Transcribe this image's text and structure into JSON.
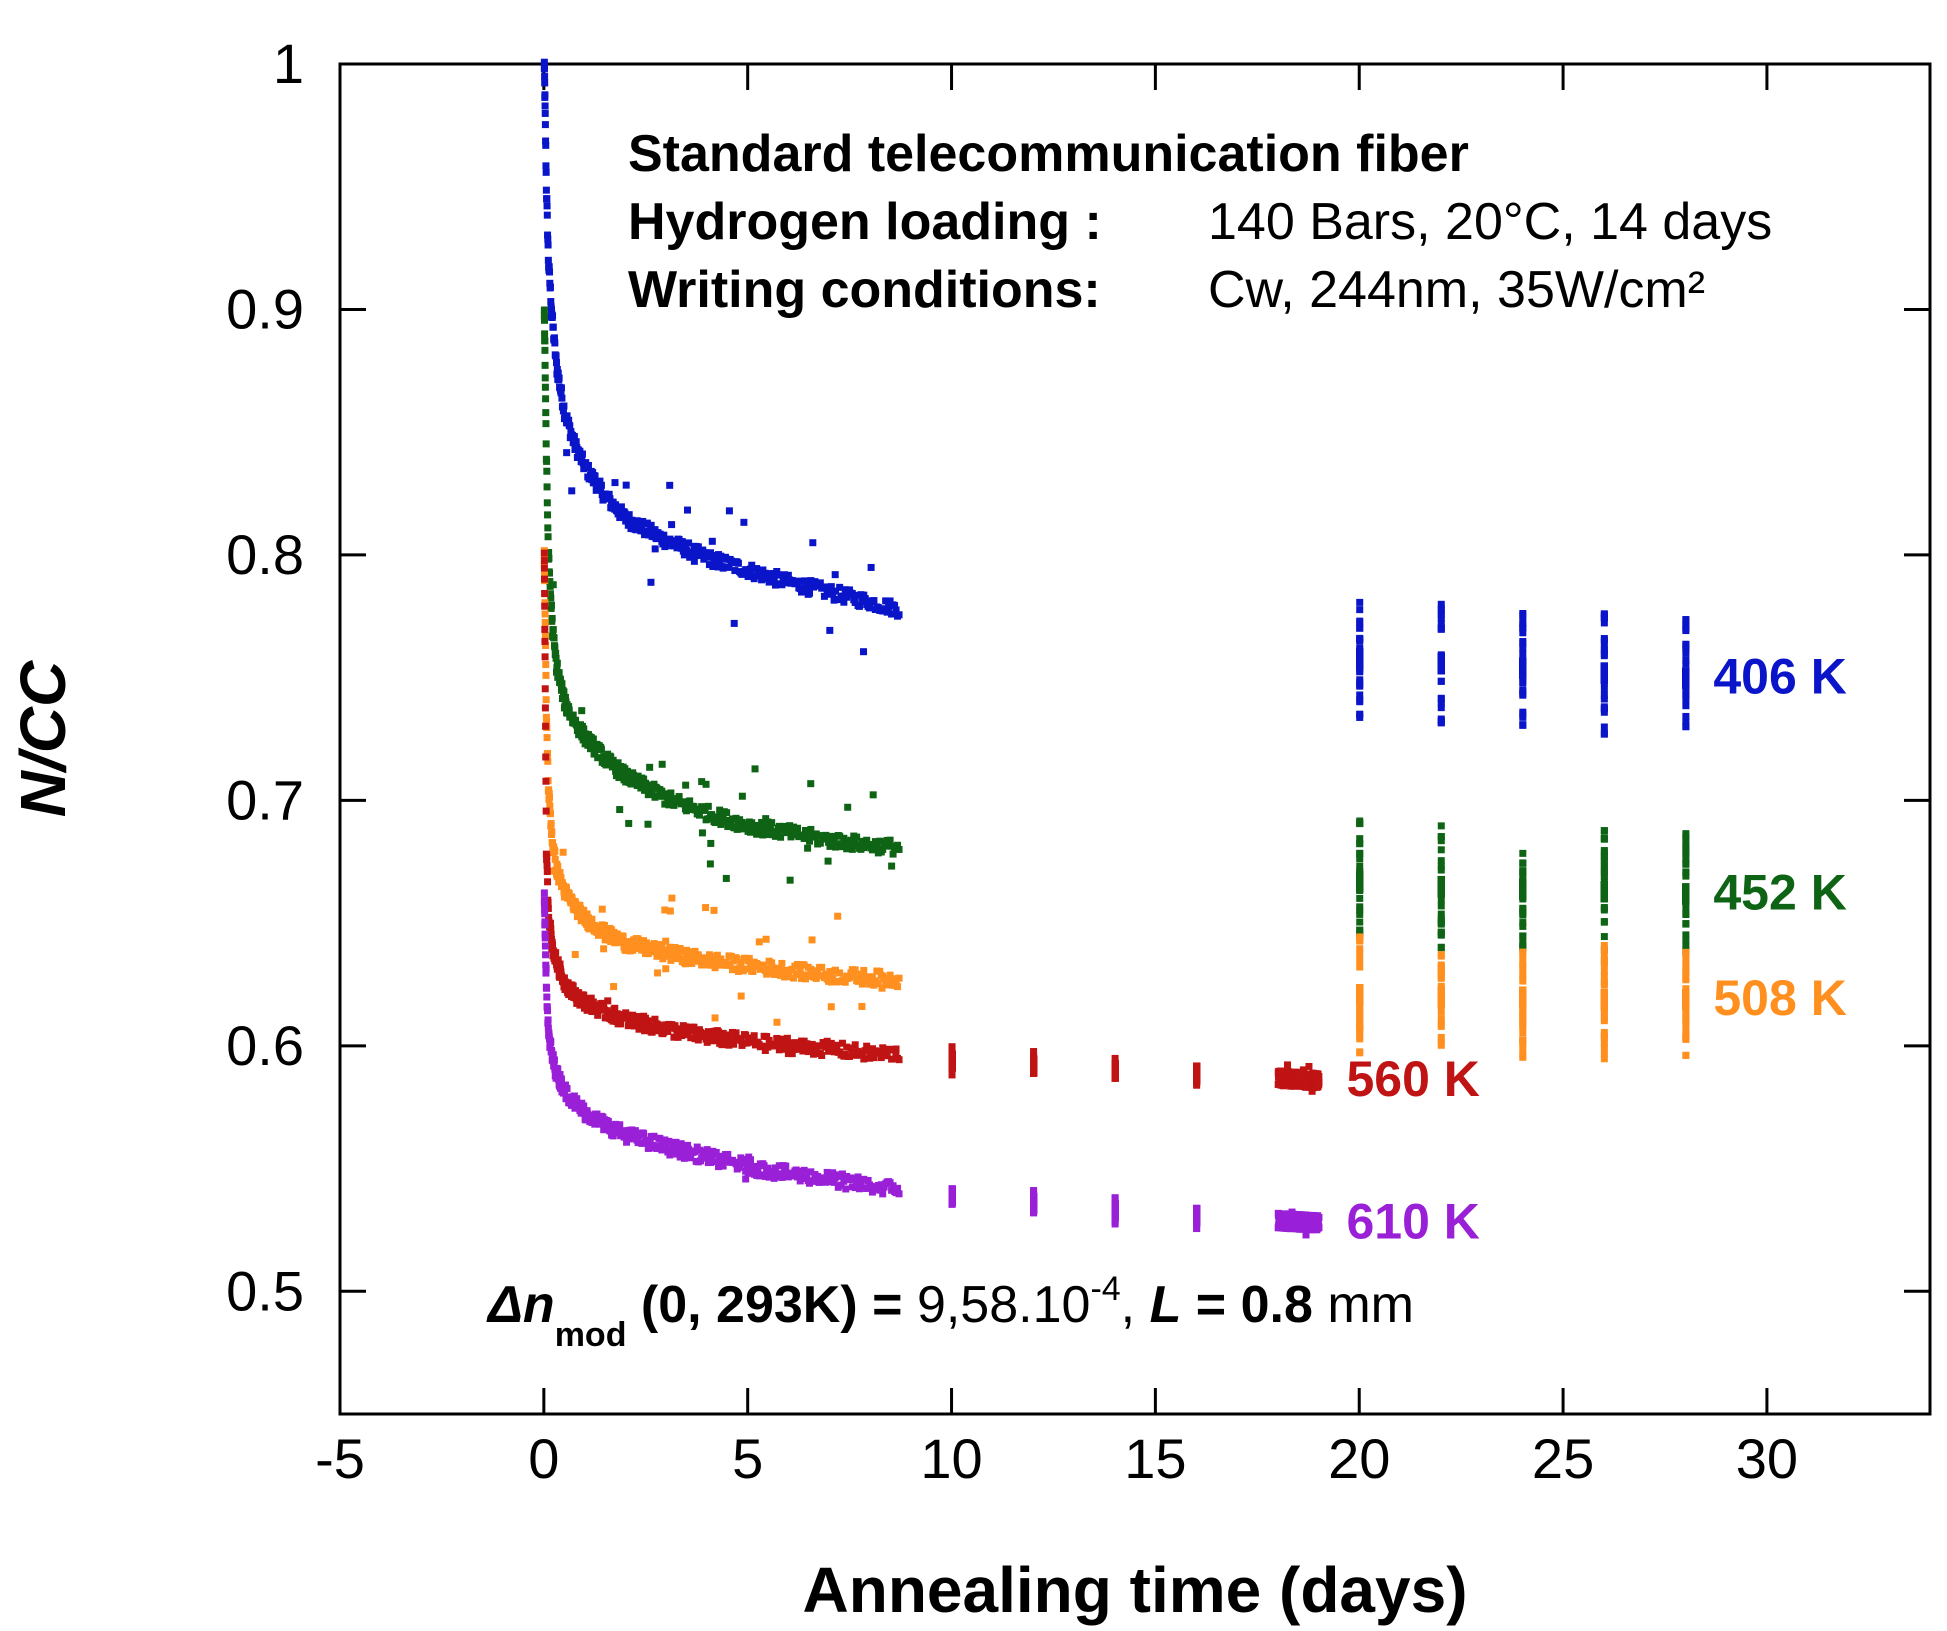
{
  "chart_data": {
    "type": "scatter",
    "title": "",
    "xlabel": "Annealing time (days)",
    "ylabel": "N/CC",
    "xlim": [
      -5,
      34
    ],
    "ylim": [
      0.45,
      1.0
    ],
    "xticks": [
      -5,
      0,
      5,
      10,
      15,
      20,
      25,
      30
    ],
    "xtick_labels": [
      "-5",
      "0",
      "5",
      "10",
      "15",
      "20",
      "25",
      "30"
    ],
    "yticks": [
      0.5,
      0.6,
      0.7,
      0.8,
      0.9,
      1.0
    ],
    "ytick_labels": [
      "0.5",
      "0.6",
      "0.7",
      "0.8",
      "0.9",
      "1"
    ],
    "grid": false,
    "series": [
      {
        "name": "406 K",
        "label": "406 K",
        "color": "#0a14c8",
        "x": [
          0,
          0.05,
          0.1,
          0.2,
          0.3,
          0.5,
          0.75,
          1,
          1.5,
          2,
          3,
          4,
          5,
          6,
          7,
          8,
          8.7,
          20,
          22,
          24,
          26,
          28
        ],
        "y": [
          1.0,
          0.95,
          0.92,
          0.895,
          0.877,
          0.858,
          0.845,
          0.836,
          0.824,
          0.815,
          0.806,
          0.799,
          0.794,
          0.789,
          0.785,
          0.781,
          0.778,
          0.758,
          0.756,
          0.754,
          0.752,
          0.75
        ]
      },
      {
        "name": "452 K",
        "label": "452 K",
        "color": "#0e6414",
        "x": [
          0,
          0.05,
          0.1,
          0.2,
          0.3,
          0.5,
          0.75,
          1,
          1.5,
          2,
          3,
          4,
          5,
          6,
          7,
          8,
          8.7,
          20,
          22,
          24,
          26,
          28
        ],
        "y": [
          0.9,
          0.84,
          0.8,
          0.77,
          0.755,
          0.74,
          0.732,
          0.726,
          0.717,
          0.71,
          0.701,
          0.695,
          0.69,
          0.687,
          0.684,
          0.682,
          0.681,
          0.667,
          0.665,
          0.664,
          0.663,
          0.662
        ]
      },
      {
        "name": "508 K",
        "label": "508 K",
        "color": "#ff9020",
        "x": [
          0,
          0.05,
          0.1,
          0.2,
          0.3,
          0.5,
          0.75,
          1,
          1.5,
          2,
          3,
          4,
          5,
          6,
          7,
          8,
          8.7,
          20,
          22,
          24,
          26,
          28
        ],
        "y": [
          0.8,
          0.735,
          0.705,
          0.683,
          0.672,
          0.663,
          0.657,
          0.652,
          0.646,
          0.642,
          0.638,
          0.635,
          0.633,
          0.631,
          0.629,
          0.628,
          0.627,
          0.621,
          0.62,
          0.62,
          0.619,
          0.619
        ]
      },
      {
        "name": "560 K",
        "label": "560 K",
        "color": "#c01414",
        "x": [
          0,
          0.05,
          0.1,
          0.2,
          0.3,
          0.5,
          0.75,
          1,
          1.5,
          2,
          3,
          4,
          5,
          6,
          7,
          8,
          8.7,
          10,
          12,
          14,
          16,
          18,
          19
        ],
        "y": [
          0.8,
          0.68,
          0.655,
          0.64,
          0.634,
          0.626,
          0.621,
          0.618,
          0.614,
          0.611,
          0.607,
          0.604,
          0.602,
          0.6,
          0.599,
          0.597,
          0.597,
          0.594,
          0.592,
          0.59,
          0.589,
          0.587,
          0.586
        ]
      },
      {
        "name": "610 K",
        "label": "610 K",
        "color": "#9a20d8",
        "x": [
          0,
          0.05,
          0.1,
          0.2,
          0.3,
          0.5,
          0.75,
          1,
          1.5,
          2,
          3,
          4,
          5,
          6,
          7,
          8,
          8.7,
          10,
          12,
          14,
          16,
          18,
          19
        ],
        "y": [
          0.66,
          0.625,
          0.605,
          0.595,
          0.589,
          0.582,
          0.577,
          0.573,
          0.568,
          0.564,
          0.559,
          0.555,
          0.551,
          0.548,
          0.546,
          0.543,
          0.542,
          0.539,
          0.536,
          0.533,
          0.531,
          0.529,
          0.528
        ]
      }
    ],
    "annotations": {
      "line1": "Standard telecommunication fiber",
      "line2_label": "Hydrogen loading :",
      "line2_value": "140 Bars, 20°C, 14 days",
      "line3_label": "Writing conditions:",
      "line3_value": "Cw, 244nm, 35W/cm²",
      "formula": {
        "delta": "Δ",
        "n": "n",
        "sub": "mod",
        "args": " (0, 293K) = ",
        "value": " 9,58.10",
        "exp": "-4",
        "sep": ", ",
        "L": "L",
        "eq": " = 0.8",
        "unit": " mm"
      }
    }
  }
}
